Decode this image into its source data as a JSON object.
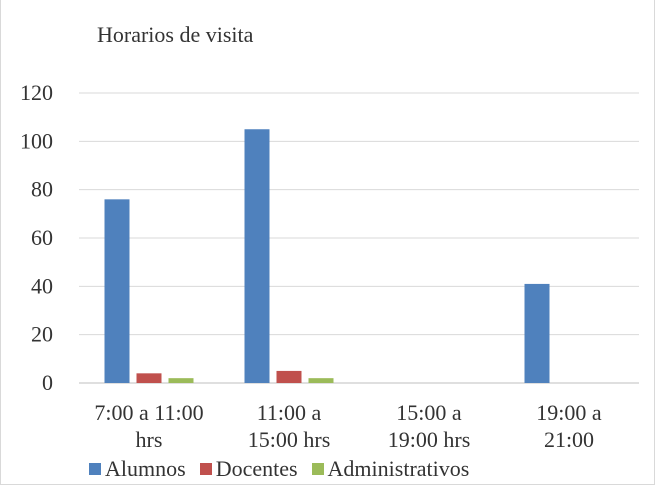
{
  "chart_data": {
    "type": "bar",
    "title": "Horarios de visita",
    "xlabel": "",
    "ylabel": "",
    "ylim": [
      0,
      120
    ],
    "yticks": [
      0,
      20,
      40,
      60,
      80,
      100,
      120
    ],
    "grid": true,
    "legend_position": "bottom",
    "categories": [
      [
        "7:00 a 11:00",
        "hrs"
      ],
      [
        "11:00 a",
        "15:00 hrs"
      ],
      [
        "15:00 a",
        "19:00 hrs"
      ],
      [
        "19:00 a",
        "21:00"
      ]
    ],
    "series": [
      {
        "name": "Alumnos",
        "color": "#4f81bd",
        "values": [
          76,
          105,
          0,
          41
        ]
      },
      {
        "name": "Docentes",
        "color": "#c0504d",
        "values": [
          4,
          5,
          0,
          0
        ]
      },
      {
        "name": "Administrativos",
        "color": "#9bbb59",
        "values": [
          2,
          2,
          0,
          0
        ]
      }
    ]
  }
}
